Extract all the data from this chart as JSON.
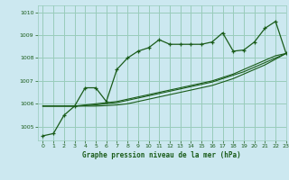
{
  "title": "Graphe pression niveau de la mer (hPa)",
  "background_color": "#cce8f0",
  "grid_color": "#99ccbb",
  "line_color": "#1a5c1a",
  "xlim": [
    -0.5,
    23
  ],
  "ylim": [
    1004.4,
    1010.3
  ],
  "yticks": [
    1005,
    1006,
    1007,
    1008,
    1009,
    1010
  ],
  "xticks": [
    0,
    1,
    2,
    3,
    4,
    5,
    6,
    7,
    8,
    9,
    10,
    11,
    12,
    13,
    14,
    15,
    16,
    17,
    18,
    19,
    20,
    21,
    22,
    23
  ],
  "hours": [
    0,
    1,
    2,
    3,
    4,
    5,
    6,
    7,
    8,
    9,
    10,
    11,
    12,
    13,
    14,
    15,
    16,
    17,
    18,
    19,
    20,
    21,
    22,
    23
  ],
  "series1": [
    1004.6,
    1004.7,
    1005.5,
    1005.9,
    1006.7,
    1006.7,
    1006.1,
    1007.5,
    1008.0,
    1008.3,
    1008.45,
    1008.8,
    1008.6,
    1008.6,
    1008.6,
    1008.6,
    1008.7,
    1009.1,
    1008.3,
    1008.35,
    1008.7,
    1009.3,
    1009.6,
    1008.2
  ],
  "series2": [
    1005.9,
    1005.9,
    1005.9,
    1005.9,
    1005.95,
    1006.0,
    1006.05,
    1006.1,
    1006.2,
    1006.3,
    1006.4,
    1006.5,
    1006.6,
    1006.7,
    1006.8,
    1006.9,
    1007.0,
    1007.15,
    1007.3,
    1007.5,
    1007.7,
    1007.9,
    1008.1,
    1008.2
  ],
  "series3": [
    1005.9,
    1005.9,
    1005.9,
    1005.9,
    1005.92,
    1005.95,
    1006.0,
    1006.05,
    1006.15,
    1006.25,
    1006.35,
    1006.45,
    1006.55,
    1006.65,
    1006.75,
    1006.85,
    1006.95,
    1007.1,
    1007.25,
    1007.4,
    1007.6,
    1007.8,
    1008.0,
    1008.2
  ],
  "series4": [
    1005.9,
    1005.9,
    1005.9,
    1005.9,
    1005.9,
    1005.9,
    1005.92,
    1005.95,
    1006.0,
    1006.1,
    1006.2,
    1006.3,
    1006.4,
    1006.5,
    1006.6,
    1006.7,
    1006.8,
    1006.95,
    1007.1,
    1007.3,
    1007.5,
    1007.7,
    1007.95,
    1008.2
  ]
}
